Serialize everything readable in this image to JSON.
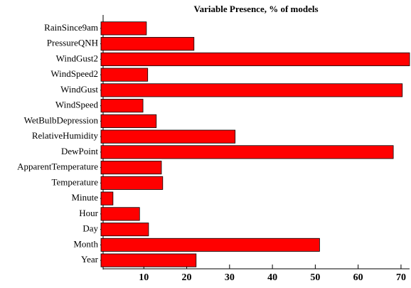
{
  "chart_data": {
    "type": "barh",
    "title": "Variable Presence, % of models",
    "categories": [
      "RainSince9am",
      "PressureQNH",
      "WindGust2",
      "WindSpeed2",
      "WindGust",
      "WindSpeed",
      "WetBulbDepression",
      "RelativeHumidity",
      "DewPoint",
      "ApparentTemperature",
      "Temperature",
      "Minute",
      "Hour",
      "Day",
      "Month",
      "Year"
    ],
    "values": [
      10.6,
      21.7,
      72,
      10.9,
      70.3,
      9.8,
      12.9,
      31.3,
      68.2,
      14.1,
      14.4,
      2.8,
      9.0,
      11.1,
      51.0,
      22.2
    ],
    "color": "#ff0000",
    "xlim": [
      0,
      72
    ],
    "xticks": [
      10,
      20,
      30,
      40,
      50,
      60,
      70
    ],
    "grid": false
  }
}
